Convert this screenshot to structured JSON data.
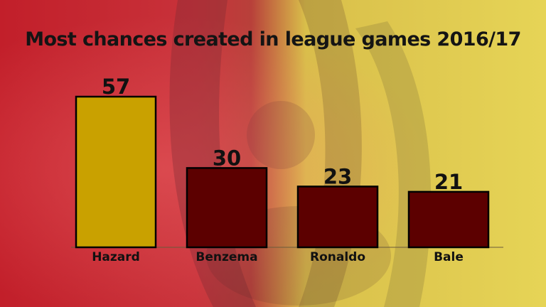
{
  "chart_data": {
    "type": "bar",
    "title": "Most chances created in league games 2016/17",
    "categories": [
      "Hazard",
      "Benzema",
      "Ronaldo",
      "Bale"
    ],
    "values": [
      57,
      30,
      23,
      21
    ],
    "ylim": [
      0,
      57
    ],
    "grid": false,
    "legend": "none",
    "colors": {
      "highlight": "#c9a100",
      "bar": "#5c0000",
      "outline": "#000000",
      "background_red": "#c0202c",
      "background_yellow": "#e4cf4e"
    },
    "highlight_index": 0
  }
}
